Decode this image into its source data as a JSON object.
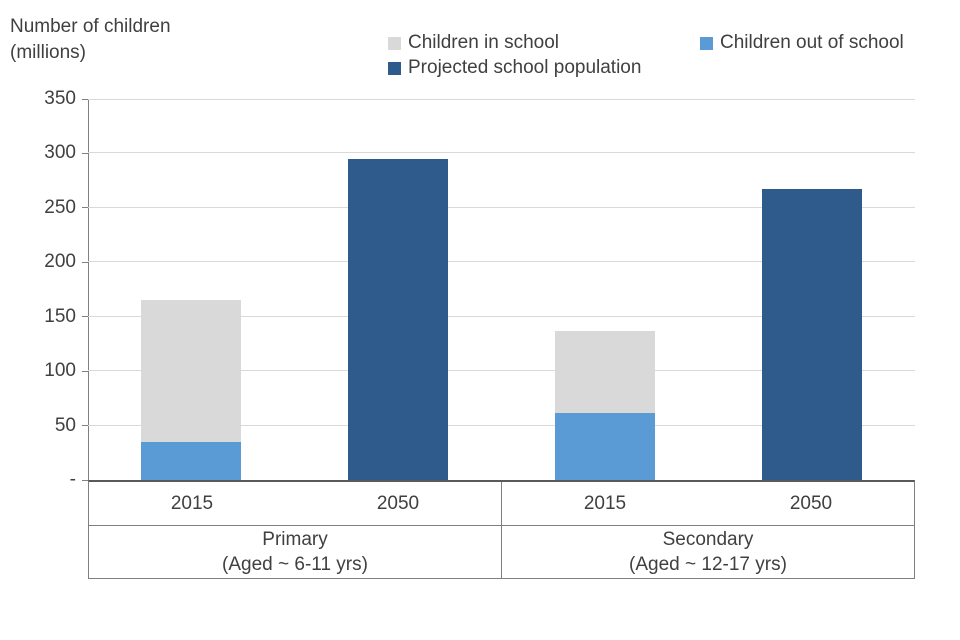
{
  "header": {
    "title_line1": "Number of children",
    "title_line2": "(millions)"
  },
  "chart_data": {
    "type": "bar",
    "stacked": true,
    "title": "Number of children (millions)",
    "ylabel": "Number of children (millions)",
    "xlabel": "",
    "ylim": [
      0,
      350
    ],
    "grid": true,
    "legend_position": "top",
    "yticks": [
      0,
      50,
      100,
      150,
      200,
      250,
      300,
      350
    ],
    "ytick_labels": [
      "-",
      "50",
      "100",
      "150",
      "200",
      "250",
      "300",
      "350"
    ],
    "legend": [
      {
        "label": "Children in school",
        "color": "#d9d9d9"
      },
      {
        "label": "Children out of school",
        "color": "#5b9bd5"
      },
      {
        "label": "Projected school population",
        "color": "#2e5b8c"
      }
    ],
    "groups": [
      {
        "label": "Primary",
        "sublabel": "(Aged ~ 6-11 yrs)",
        "bars": [
          {
            "category": "2015",
            "total": 165,
            "segments": [
              {
                "series": "Children out of school",
                "value": 35
              },
              {
                "series": "Children in school",
                "value": 130
              }
            ]
          },
          {
            "category": "2050",
            "total": 295,
            "segments": [
              {
                "series": "Projected school population",
                "value": 295
              }
            ]
          }
        ]
      },
      {
        "label": "Secondary",
        "sublabel": "(Aged ~ 12-17 yrs)",
        "bars": [
          {
            "category": "2015",
            "total": 137,
            "segments": [
              {
                "series": "Children out of school",
                "value": 62
              },
              {
                "series": "Children in school",
                "value": 75
              }
            ]
          },
          {
            "category": "2050",
            "total": 267,
            "segments": [
              {
                "series": "Projected school population",
                "value": 267
              }
            ]
          }
        ]
      }
    ]
  }
}
